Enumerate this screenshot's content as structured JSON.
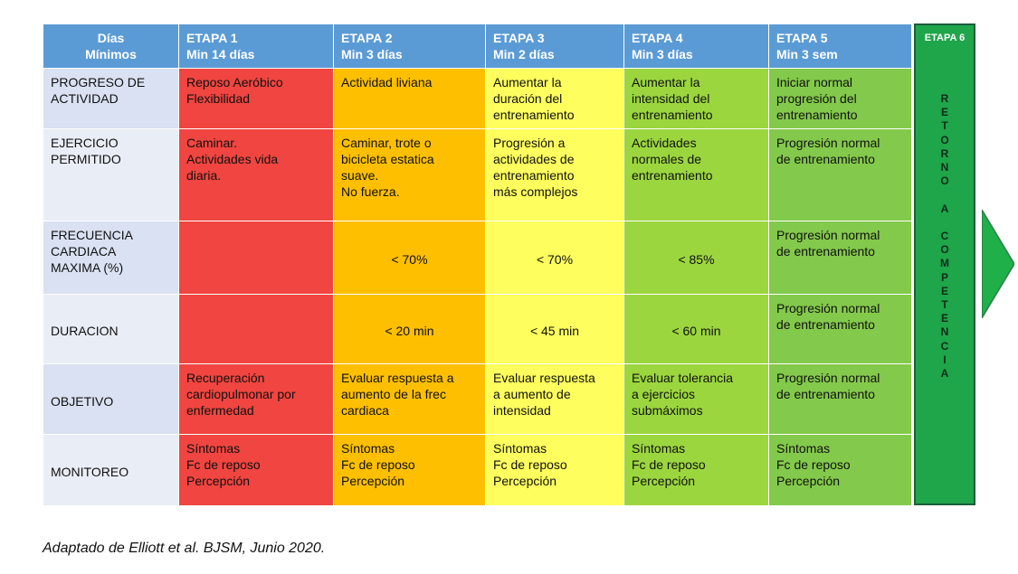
{
  "header": {
    "col0": [
      "Días",
      "Mínimos"
    ],
    "stages": [
      {
        "name": "ETAPA 1",
        "duration": "Min 14 días"
      },
      {
        "name": "ETAPA 2",
        "duration": "Min 3 días"
      },
      {
        "name": "ETAPA 3",
        "duration": "Min 2 días"
      },
      {
        "name": "ETAPA 4",
        "duration": "Min 3 días"
      },
      {
        "name": "ETAPA 5",
        "duration": "Min 3 sem"
      }
    ]
  },
  "rows": [
    {
      "label": [
        "PROGRESO DE",
        "ACTIVIDAD"
      ],
      "cells": [
        [
          "Reposo Aeróbico",
          "Flexibilidad"
        ],
        [
          "Actividad liviana"
        ],
        [
          "Aumentar la",
          "duración del",
          "entrenamiento"
        ],
        [
          "Aumentar la",
          "intensidad del",
          "entrenamiento"
        ],
        [
          "Iniciar normal",
          "progresión del",
          "entrenamiento"
        ]
      ]
    },
    {
      "label": [
        "EJERCICIO",
        "PERMITIDO"
      ],
      "cells": [
        [
          "Caminar.",
          "Actividades vida",
          "diaria."
        ],
        [
          "Caminar, trote o",
          "bicicleta estatica",
          "suave.",
          "No fuerza."
        ],
        [
          "Progresión a",
          "actividades de",
          "entrenamiento",
          "más complejos"
        ],
        [
          "Actividades",
          "normales de",
          "entrenamiento"
        ],
        [
          "Progresión normal",
          "de entrenamiento"
        ]
      ]
    },
    {
      "label": [
        "FRECUENCIA",
        "CARDIACA",
        "MAXIMA (%)"
      ],
      "cells": [
        [],
        [
          "< 70%"
        ],
        [
          "< 70%"
        ],
        [
          "< 85%"
        ],
        [
          "Progresión normal",
          "de entrenamiento"
        ]
      ]
    },
    {
      "label": [
        "DURACION"
      ],
      "cells": [
        [],
        [
          "< 20 min"
        ],
        [
          "< 45 min"
        ],
        [
          "< 60 min"
        ],
        [
          "Progresión normal",
          "de entrenamiento"
        ]
      ]
    },
    {
      "label": [
        "OBJETIVO"
      ],
      "cells": [
        [
          "Recuperación",
          "cardiopulmonar  por",
          "enfermedad"
        ],
        [
          "Evaluar respuesta a",
          "aumento de la frec",
          "cardiaca"
        ],
        [
          "Evaluar respuesta",
          "a aumento  de",
          "intensidad"
        ],
        [
          "Evaluar tolerancia",
          "a ejercicios",
          "submáximos"
        ],
        [
          "Progresión normal",
          "de entrenamiento"
        ]
      ]
    },
    {
      "label": [
        "MONITOREO"
      ],
      "cells": [
        [
          "Síntomas",
          "Fc de reposo",
          "Percepción"
        ],
        [
          "Síntomas",
          "Fc de reposo",
          "Percepción"
        ],
        [
          "Síntomas",
          "Fc de reposo",
          "Percepción"
        ],
        [
          "Síntomas",
          "Fc de reposo",
          "Percepción"
        ],
        [
          "Síntomas",
          "Fc de reposo",
          "Percepción"
        ]
      ]
    }
  ],
  "stage6": {
    "title": "ETAPA 6",
    "letters": [
      "R",
      "E",
      "T",
      "O",
      "R",
      "N",
      "O",
      "",
      "A",
      "",
      "C",
      "O",
      "M",
      "P",
      "E",
      "T",
      "E",
      "N",
      "C",
      "I",
      "A"
    ]
  },
  "caption": "Adaptado de Elliott et al. BJSM, Junio 2020.",
  "colors": {
    "header": "#5b9bd5",
    "stage1": "#f04540",
    "stage2": "#fdbf00",
    "stage3": "#fefe5e",
    "stage4": "#9bd63f",
    "stage5": "#83c94b",
    "stage6": "#1fa54a",
    "arrow": "#20b04a"
  }
}
